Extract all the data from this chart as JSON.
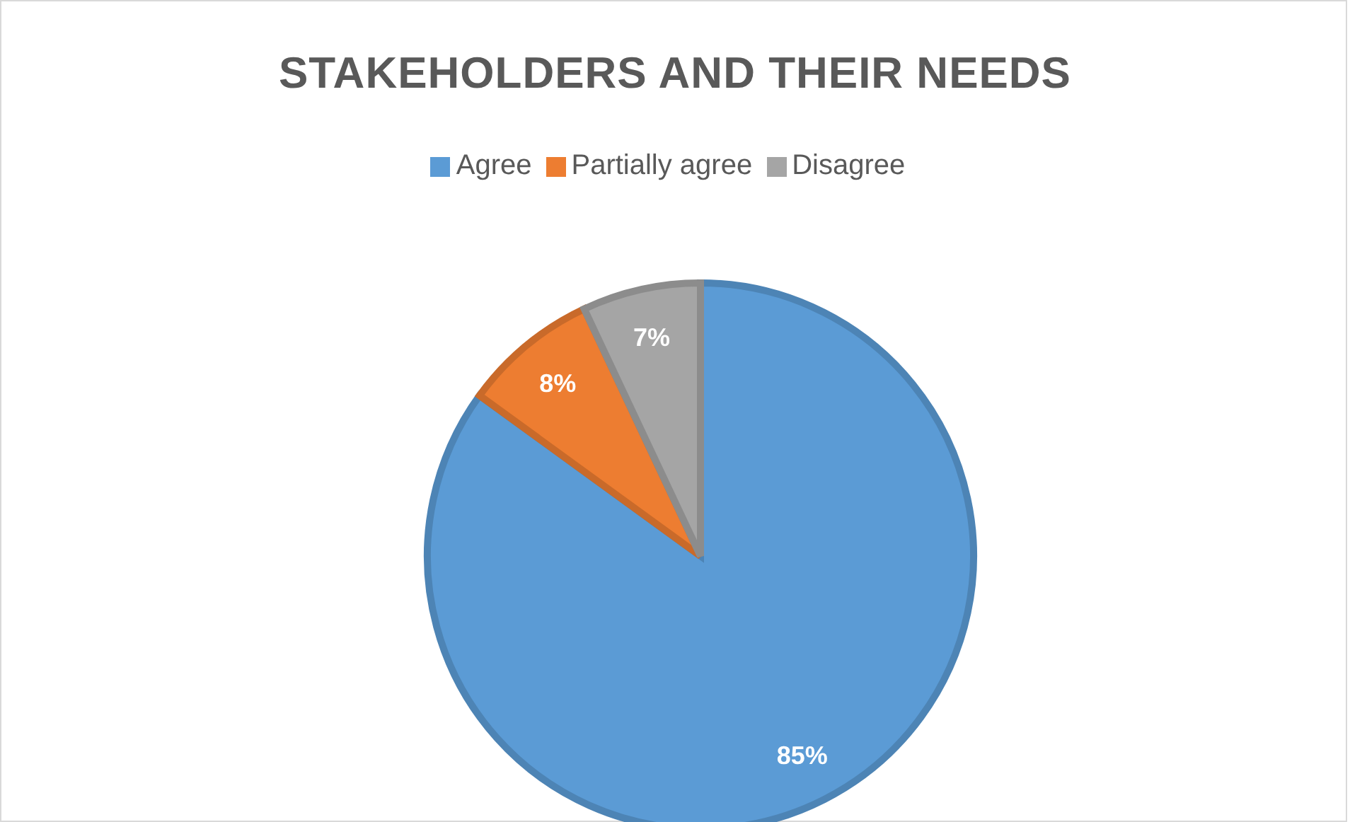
{
  "chart_data": {
    "type": "pie",
    "title": "STAKEHOLDERS AND THEIR NEEDS",
    "categories": [
      "Agree",
      "Partially agree",
      "Disagree"
    ],
    "values": [
      85,
      8,
      7
    ],
    "value_labels": [
      "85%",
      "8%",
      "7%"
    ],
    "colors": [
      "#5b9bd5",
      "#ed7d31",
      "#a5a5a5"
    ],
    "legend": "top"
  }
}
